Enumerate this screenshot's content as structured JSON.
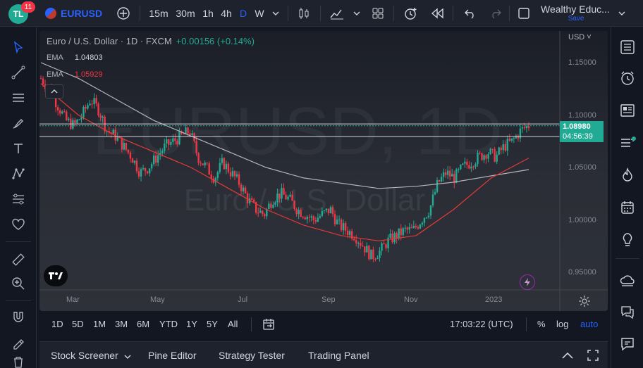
{
  "topbar": {
    "notification_count": "11",
    "logo_text": "TL",
    "symbol": "EURUSD",
    "intervals": [
      "15m",
      "30m",
      "1h",
      "4h",
      "D",
      "W"
    ],
    "active_interval": "D",
    "account_name": "Wealthy Educ...",
    "save_label": "Save"
  },
  "legend": {
    "title": "Euro / U.S. Dollar · 1D · FXCM",
    "change": "+0.00156 (+0.14%)",
    "ema1_label": "EMA",
    "ema1_value": "1.04803",
    "ema2_label": "EMA",
    "ema2_value": "1.05929"
  },
  "watermark": {
    "symbol": "EURUSD, 1D",
    "name": "Euro / U.S. Dollar"
  },
  "price_axis": {
    "currency": "USD",
    "ticks": [
      "1.15000",
      "1.10000",
      "1.05000",
      "1.00000",
      "0.95000"
    ],
    "last_price": "1.08980",
    "countdown": "04:56:39"
  },
  "time_axis": {
    "ticks": [
      "Mar",
      "May",
      "Jul",
      "Sep",
      "Nov",
      "2023"
    ]
  },
  "range_bar": {
    "ranges": [
      "1D",
      "5D",
      "1M",
      "3M",
      "6M",
      "YTD",
      "1Y",
      "5Y",
      "All"
    ],
    "clock": "17:03:22 (UTC)",
    "percent_label": "%",
    "log_label": "log",
    "auto_label": "auto"
  },
  "bottom_tabs": [
    "Stock Screener",
    "Pine Editor",
    "Strategy Tester",
    "Trading Panel"
  ],
  "colors": {
    "up": "#22ab94",
    "down": "#f23645",
    "ema_fast": "#e53935",
    "ema_slow": "#b2b5be",
    "accent": "#2962ff"
  },
  "chart_data": {
    "type": "candlestick",
    "pair": "EURUSD",
    "timeframe": "1D",
    "x_range": [
      "2022-02",
      "2023-01"
    ],
    "ylim": [
      0.93,
      1.18
    ],
    "support_resistance_lines": [
      1.0915,
      1.0795
    ],
    "closes_weekly_approx": [
      1.135,
      1.125,
      1.11,
      1.095,
      1.09,
      1.1,
      1.115,
      1.105,
      1.085,
      1.08,
      1.07,
      1.06,
      1.045,
      1.05,
      1.06,
      1.07,
      1.075,
      1.08,
      1.085,
      1.06,
      1.05,
      1.04,
      1.055,
      1.045,
      1.035,
      1.02,
      1.01,
      1.005,
      1.02,
      1.025,
      1.02,
      1.01,
      1.005,
      1.0,
      1.005,
      1.01,
      0.995,
      0.99,
      0.985,
      0.975,
      0.965,
      0.97,
      0.98,
      0.985,
      0.99,
      0.99,
      1.0,
      1.01,
      1.035,
      1.045,
      1.04,
      1.05,
      1.055,
      1.06,
      1.065,
      1.06,
      1.07,
      1.075,
      1.085,
      1.09
    ],
    "ema_fast_approx": [
      1.13,
      1.1,
      1.08,
      1.065,
      1.05,
      1.03,
      1.01,
      0.995,
      0.985,
      0.98,
      0.985,
      1.01,
      1.04,
      1.059
    ],
    "ema_slow_approx": [
      1.15,
      1.135,
      1.115,
      1.095,
      1.08,
      1.065,
      1.05,
      1.04,
      1.035,
      1.03,
      1.032,
      1.036,
      1.042,
      1.048
    ]
  }
}
